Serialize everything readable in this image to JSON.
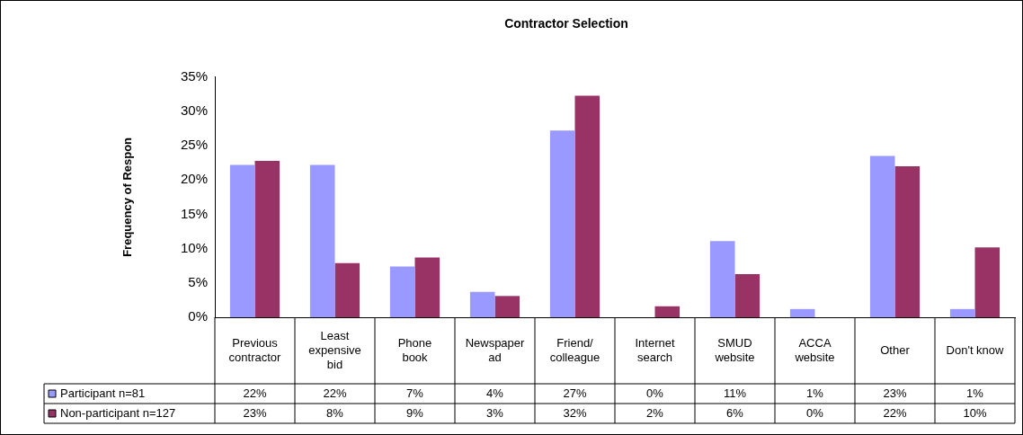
{
  "chart_data": {
    "type": "bar",
    "title": "Contractor Selection",
    "ylabel": "Frequency of Respon",
    "categories": [
      "Previous contractor",
      "Least expensive bid",
      "Phone book",
      "Newspaper ad",
      "Friend/ colleague",
      "Internet search",
      "SMUD website",
      "ACCA website",
      "Other",
      "Don't know"
    ],
    "series": [
      {
        "name": "Participant n=81",
        "color": "#9999ff",
        "values": [
          22.2,
          22.2,
          7.4,
          3.7,
          27.2,
          0,
          11.1,
          1.2,
          23.5,
          1.2
        ],
        "value_labels": [
          "22%",
          "22%",
          "7%",
          "4%",
          "27%",
          "0%",
          "11%",
          "1%",
          "23%",
          "1%"
        ]
      },
      {
        "name": "Non-participant n=127",
        "color": "#993366",
        "values": [
          22.8,
          7.9,
          8.7,
          3.1,
          32.3,
          1.6,
          6.3,
          0,
          22.0,
          10.2
        ],
        "value_labels": [
          "23%",
          "8%",
          "9%",
          "3%",
          "32%",
          "2%",
          "6%",
          "0%",
          "22%",
          "10%"
        ]
      }
    ],
    "ylim": [
      0,
      35
    ],
    "yticks": [
      {
        "value": 0,
        "label": "0%"
      },
      {
        "value": 5,
        "label": "5%"
      },
      {
        "value": 10,
        "label": "10%"
      },
      {
        "value": 15,
        "label": "15%"
      },
      {
        "value": 20,
        "label": "20%"
      },
      {
        "value": 25,
        "label": "25%"
      },
      {
        "value": 30,
        "label": "30%"
      },
      {
        "value": 35,
        "label": "35%"
      }
    ],
    "grid": false,
    "legend": "bottom left"
  }
}
